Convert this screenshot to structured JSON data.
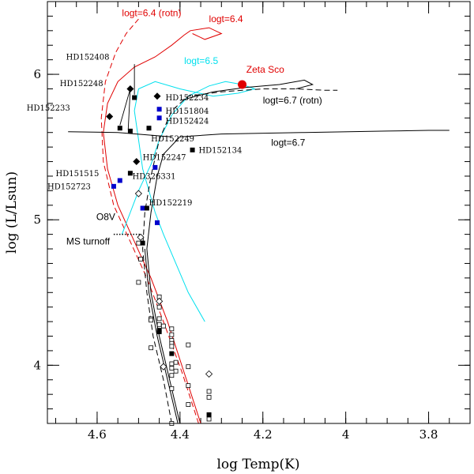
{
  "chart_data": {
    "type": "scatter",
    "title": "",
    "xlabel": "log Temp(K)",
    "ylabel": "log (L/Lsun)",
    "xlim": [
      4.72,
      3.7
    ],
    "ylim": [
      3.6,
      6.5
    ],
    "x_ticks": [
      {
        "v": 4.6,
        "label": "4.6"
      },
      {
        "v": 4.4,
        "label": "4.4"
      },
      {
        "v": 4.2,
        "label": "4.2"
      },
      {
        "v": 4.0,
        "label": "4"
      },
      {
        "v": 3.8,
        "label": "3.8"
      }
    ],
    "y_ticks": [
      {
        "v": 4,
        "label": "4"
      },
      {
        "v": 5,
        "label": "5"
      },
      {
        "v": 6,
        "label": "6"
      }
    ],
    "x_minor_step": 0.05,
    "y_minor_step": 0.1,
    "colors": {
      "red": "#e00000",
      "cyan": "#00e0ee",
      "blue": "#0000cc",
      "black": "#000000"
    },
    "tracks": [
      {
        "name": "logt=6.4",
        "color": "#e00000",
        "style": "solid",
        "points": [
          [
            4.35,
            3.6
          ],
          [
            4.39,
            3.95
          ],
          [
            4.43,
            4.3
          ],
          [
            4.47,
            4.6
          ],
          [
            4.51,
            4.85
          ],
          [
            4.55,
            5.1
          ],
          [
            4.575,
            5.35
          ],
          [
            4.585,
            5.6
          ],
          [
            4.575,
            5.8
          ],
          [
            4.55,
            5.95
          ],
          [
            4.51,
            6.05
          ],
          [
            4.46,
            6.12
          ],
          [
            4.42,
            6.2
          ],
          [
            4.39,
            6.27
          ],
          [
            4.375,
            6.3
          ],
          [
            4.33,
            6.32
          ],
          [
            4.3,
            6.28
          ],
          [
            4.34,
            6.24
          ],
          [
            4.37,
            6.28
          ]
        ]
      },
      {
        "name": "logt=6.4 (rotn)",
        "color": "#e00000",
        "style": "dashed",
        "points": [
          [
            4.355,
            3.6
          ],
          [
            4.395,
            3.95
          ],
          [
            4.44,
            4.3
          ],
          [
            4.48,
            4.6
          ],
          [
            4.52,
            4.85
          ],
          [
            4.56,
            5.1
          ],
          [
            4.585,
            5.4
          ],
          [
            4.59,
            5.7
          ],
          [
            4.58,
            5.95
          ],
          [
            4.555,
            6.15
          ],
          [
            4.53,
            6.28
          ],
          [
            4.5,
            6.38
          ]
        ]
      },
      {
        "name": "logt=6.5",
        "color": "#00e0ee",
        "style": "solid",
        "points": [
          [
            4.54,
            4.9
          ],
          [
            4.52,
            5.05
          ],
          [
            4.5,
            5.2
          ],
          [
            4.47,
            5.38
          ],
          [
            4.45,
            5.55
          ],
          [
            4.42,
            5.72
          ],
          [
            4.38,
            5.85
          ],
          [
            4.33,
            5.92
          ],
          [
            4.29,
            5.95
          ],
          [
            4.25,
            5.93
          ],
          [
            4.22,
            5.9
          ],
          [
            4.26,
            5.87
          ],
          [
            4.32,
            5.85
          ],
          [
            4.4,
            5.9
          ],
          [
            4.46,
            5.95
          ],
          [
            4.5,
            5.9
          ],
          [
            4.51,
            5.75
          ],
          [
            4.5,
            5.55
          ],
          [
            4.49,
            5.35
          ],
          [
            4.475,
            5.2
          ],
          [
            4.46,
            5.05
          ],
          [
            4.44,
            4.9
          ],
          [
            4.41,
            4.7
          ],
          [
            4.38,
            4.5
          ],
          [
            4.34,
            4.3
          ]
        ]
      },
      {
        "name": "logt=6.7 (rotn)",
        "color": "#000000",
        "style": "dashed",
        "points": [
          [
            4.42,
            3.6
          ],
          [
            4.44,
            3.9
          ],
          [
            4.465,
            4.2
          ],
          [
            4.48,
            4.5
          ],
          [
            4.49,
            4.8
          ],
          [
            4.485,
            5.05
          ],
          [
            4.47,
            5.3
          ],
          [
            4.45,
            5.55
          ],
          [
            4.42,
            5.75
          ],
          [
            4.38,
            5.85
          ],
          [
            4.3,
            5.88
          ],
          [
            4.2,
            5.9
          ],
          [
            4.12,
            5.9
          ],
          [
            4.05,
            5.89
          ],
          [
            4.02,
            5.89
          ]
        ]
      },
      {
        "name": "logt=6.7 (rotn) loop",
        "color": "#000000",
        "style": "solid",
        "points": [
          [
            4.4,
            5.82
          ],
          [
            4.32,
            5.88
          ],
          [
            4.24,
            5.91
          ],
          [
            4.16,
            5.93
          ],
          [
            4.1,
            5.96
          ],
          [
            4.08,
            5.93
          ],
          [
            4.12,
            5.9
          ]
        ]
      },
      {
        "name": "logt=6.7",
        "color": "#000000",
        "style": "solid",
        "points": [
          [
            4.4,
            3.6
          ],
          [
            4.425,
            3.9
          ],
          [
            4.45,
            4.2
          ],
          [
            4.47,
            4.5
          ],
          [
            4.48,
            4.8
          ],
          [
            4.47,
            5.05
          ],
          [
            4.455,
            5.3
          ],
          [
            4.44,
            5.45
          ],
          [
            4.4,
            5.57
          ],
          [
            4.3,
            5.59
          ],
          [
            4.1,
            5.6
          ],
          [
            3.9,
            5.61
          ],
          [
            3.8,
            5.615
          ],
          [
            3.75,
            5.615
          ]
        ]
      },
      {
        "name": "logt=6.7 hook",
        "color": "#000000",
        "style": "solid",
        "points": [
          [
            4.42,
            5.57
          ],
          [
            4.55,
            5.6
          ],
          [
            4.67,
            5.605
          ]
        ]
      },
      {
        "name": "logt=6.7 second",
        "color": "#000000",
        "style": "solid",
        "points": [
          [
            4.405,
            3.6
          ],
          [
            4.43,
            3.9
          ],
          [
            4.455,
            4.2
          ],
          [
            4.475,
            4.5
          ],
          [
            4.485,
            4.8
          ]
        ]
      }
    ],
    "track_labels": [
      {
        "text": "logt=6.4 (rotn)",
        "x": 4.54,
        "y": 6.4,
        "color": "#e00000"
      },
      {
        "text": "logt=6.4",
        "x": 4.33,
        "y": 6.36,
        "color": "#e00000"
      },
      {
        "text": "logt=6.5",
        "x": 4.39,
        "y": 6.07,
        "color": "#00e0ee"
      },
      {
        "text": "Zeta Sco",
        "x": 4.24,
        "y": 6.01,
        "color": "#e00000"
      },
      {
        "text": "logt=6.7 (rotn)",
        "x": 4.2,
        "y": 5.8,
        "color": "#000000"
      },
      {
        "text": "logt=6.7",
        "x": 4.18,
        "y": 5.51,
        "color": "#000000"
      }
    ],
    "zeta_sco": {
      "name": "Zeta Sco",
      "x": 4.25,
      "y": 5.93,
      "color": "#e00000"
    },
    "stars_labeled": [
      {
        "name": "HD152408",
        "mark": "square-black",
        "x": 4.51,
        "y": 5.84,
        "lx": 4.675,
        "ly": 6.1
      },
      {
        "name": "HD152248",
        "mark": "diamond-black",
        "x": 4.52,
        "y": 5.9,
        "lx": 4.69,
        "ly": 5.92
      },
      {
        "name": "HD152233",
        "mark": "diamond-black",
        "x": 4.57,
        "y": 5.71,
        "lx": 4.77,
        "ly": 5.75
      },
      {
        "name": "HD152234",
        "mark": "diamond-black",
        "x": 4.455,
        "y": 5.85,
        "lx": 4.435,
        "ly": 5.82
      },
      {
        "name": "HD151804",
        "mark": "square-blue",
        "x": 4.45,
        "y": 5.76,
        "lx": 4.435,
        "ly": 5.73
      },
      {
        "name": "HD152424",
        "mark": "square-blue",
        "x": 4.45,
        "y": 5.7,
        "lx": 4.435,
        "ly": 5.66
      },
      {
        "name": "HD152249",
        "mark": "square-black",
        "x": 4.475,
        "y": 5.63,
        "lx": 4.47,
        "ly": 5.54
      },
      {
        "name": "HD152134",
        "mark": "square-black",
        "x": 4.37,
        "y": 5.48,
        "lx": 4.355,
        "ly": 5.46
      },
      {
        "name": "HD152247",
        "mark": "diamond-black",
        "x": 4.505,
        "y": 5.4,
        "lx": 4.49,
        "ly": 5.41
      },
      {
        "name": "HD326331",
        "mark": "square-black",
        "x": 4.52,
        "y": 5.32,
        "lx": 4.515,
        "ly": 5.28
      },
      {
        "name": "HD151515",
        "mark": "square-blue",
        "x": 4.545,
        "y": 5.27,
        "lx": 4.7,
        "ly": 5.3
      },
      {
        "name": "HD152723",
        "mark": "square-blue",
        "x": 4.56,
        "y": 5.23,
        "lx": 4.72,
        "ly": 5.21
      },
      {
        "name": "HD152219",
        "mark": "square-black",
        "x": 4.48,
        "y": 5.08,
        "lx": 4.475,
        "ly": 5.1
      }
    ],
    "arrows": [
      {
        "from": [
          4.51,
          6.07
        ],
        "to": [
          4.51,
          5.86
        ]
      },
      {
        "from": [
          4.52,
          5.9
        ],
        "to": [
          4.545,
          5.65
        ]
      },
      {
        "from": [
          4.52,
          5.9
        ],
        "to": [
          4.525,
          5.62
        ]
      }
    ],
    "other_points": [
      {
        "x": 4.545,
        "y": 5.63,
        "mark": "square-black"
      },
      {
        "x": 4.52,
        "y": 5.61,
        "mark": "square-black"
      },
      {
        "x": 4.46,
        "y": 5.36,
        "mark": "square-blue"
      },
      {
        "x": 4.49,
        "y": 5.08,
        "mark": "square-blue"
      },
      {
        "x": 4.455,
        "y": 4.98,
        "mark": "square-blue"
      },
      {
        "x": 4.49,
        "y": 4.84,
        "mark": "square-black"
      },
      {
        "x": 4.495,
        "y": 4.88,
        "mark": "diamond-open"
      },
      {
        "x": 4.5,
        "y": 5.18,
        "mark": "diamond-open"
      },
      {
        "x": 4.5,
        "y": 4.84,
        "mark": "square-open"
      },
      {
        "x": 4.495,
        "y": 4.73,
        "mark": "square-open"
      },
      {
        "x": 4.5,
        "y": 4.57,
        "mark": "square-open"
      },
      {
        "x": 4.45,
        "y": 4.47,
        "mark": "square-open"
      },
      {
        "x": 4.45,
        "y": 4.44,
        "mark": "diamond-open"
      },
      {
        "x": 4.45,
        "y": 4.4,
        "mark": "square-open"
      },
      {
        "x": 4.47,
        "y": 4.32,
        "mark": "square-open"
      },
      {
        "x": 4.47,
        "y": 4.31,
        "mark": "square-open"
      },
      {
        "x": 4.45,
        "y": 4.32,
        "mark": "square-open"
      },
      {
        "x": 4.45,
        "y": 4.28,
        "mark": "square-open"
      },
      {
        "x": 4.44,
        "y": 4.27,
        "mark": "square-open"
      },
      {
        "x": 4.45,
        "y": 4.24,
        "mark": "square-black"
      },
      {
        "x": 4.45,
        "y": 4.23,
        "mark": "square-black"
      },
      {
        "x": 4.42,
        "y": 4.25,
        "mark": "square-open"
      },
      {
        "x": 4.42,
        "y": 4.21,
        "mark": "square-open"
      },
      {
        "x": 4.42,
        "y": 4.17,
        "mark": "square-open"
      },
      {
        "x": 4.42,
        "y": 4.15,
        "mark": "square-open"
      },
      {
        "x": 4.42,
        "y": 4.13,
        "mark": "square-open"
      },
      {
        "x": 4.47,
        "y": 4.12,
        "mark": "square-open"
      },
      {
        "x": 4.38,
        "y": 4.14,
        "mark": "square-open"
      },
      {
        "x": 4.42,
        "y": 4.08,
        "mark": "square-black"
      },
      {
        "x": 4.41,
        "y": 4.02,
        "mark": "square-open"
      },
      {
        "x": 4.42,
        "y": 4.01,
        "mark": "square-open"
      },
      {
        "x": 4.44,
        "y": 3.99,
        "mark": "diamond-open"
      },
      {
        "x": 4.42,
        "y": 3.98,
        "mark": "square-open"
      },
      {
        "x": 4.38,
        "y": 3.99,
        "mark": "square-open"
      },
      {
        "x": 4.41,
        "y": 3.96,
        "mark": "square-open"
      },
      {
        "x": 4.42,
        "y": 3.93,
        "mark": "square-open"
      },
      {
        "x": 4.38,
        "y": 3.86,
        "mark": "square-open"
      },
      {
        "x": 4.42,
        "y": 3.84,
        "mark": "square-open"
      },
      {
        "x": 4.33,
        "y": 3.94,
        "mark": "diamond-open"
      },
      {
        "x": 4.33,
        "y": 3.82,
        "mark": "square-open"
      },
      {
        "x": 4.33,
        "y": 3.78,
        "mark": "square-open"
      },
      {
        "x": 4.38,
        "y": 3.73,
        "mark": "square-open"
      },
      {
        "x": 4.33,
        "y": 3.66,
        "mark": "square-black"
      },
      {
        "x": 4.33,
        "y": 3.63,
        "mark": "square-open"
      },
      {
        "x": 4.42,
        "y": 3.6,
        "mark": "square-open"
      }
    ],
    "o8v": {
      "line1": "O8V",
      "line2": "MS turnoff",
      "x_from": 4.56,
      "x_to": 4.495,
      "y": 4.9
    }
  }
}
